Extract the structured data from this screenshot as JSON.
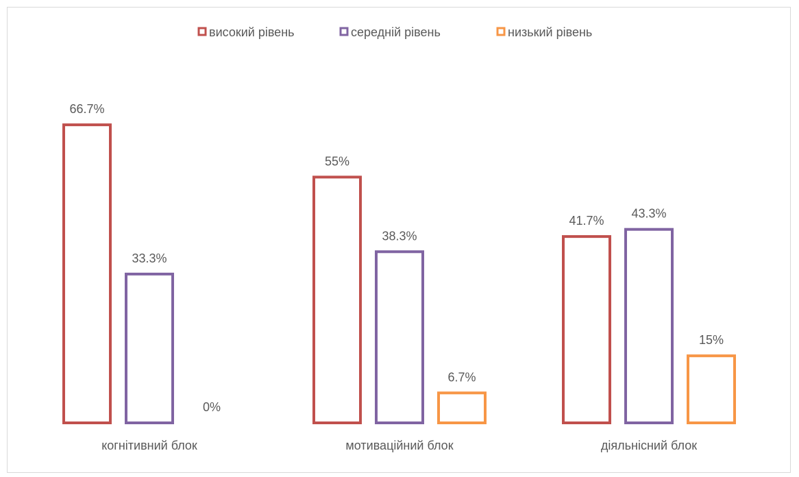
{
  "chart_data": {
    "type": "bar",
    "title": "",
    "xlabel": "",
    "ylabel": "",
    "ylim": [
      0,
      70
    ],
    "grid": false,
    "legend_position": "top",
    "bar_style": "outline",
    "categories": [
      "когнітивний блок",
      "мотиваційний блок",
      "діяльнісний блок"
    ],
    "series": [
      {
        "name": "високий рівень",
        "color": "#c0504d",
        "values": [
          66.7,
          55,
          41.7
        ],
        "labels": [
          "66.7%",
          "55%",
          "41.7%"
        ]
      },
      {
        "name": "середній рівень",
        "color": "#8064a2",
        "values": [
          33.3,
          38.3,
          43.3
        ],
        "labels": [
          "33.3%",
          "38.3%",
          "43.3%"
        ]
      },
      {
        "name": "низький рівень",
        "color": "#f79646",
        "values": [
          0,
          6.7,
          15
        ],
        "labels": [
          "0%",
          "6.7%",
          "15%"
        ]
      }
    ]
  }
}
